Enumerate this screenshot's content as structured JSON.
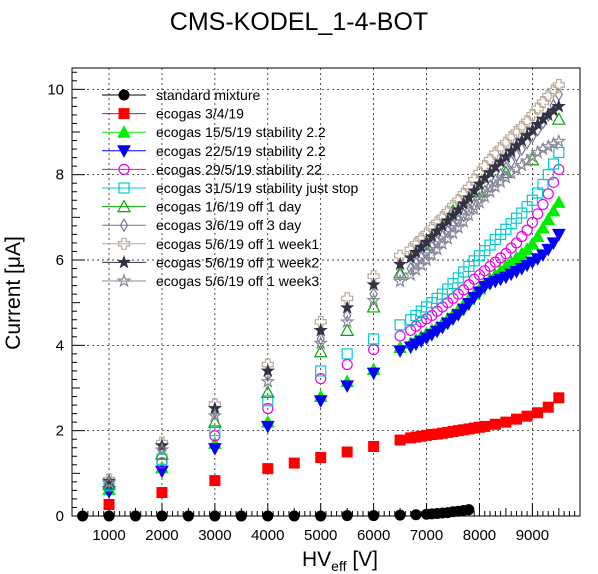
{
  "chart_data": {
    "type": "scatter",
    "title": "CMS-KODEL_1-4-BOT",
    "xlabel": {
      "main": "HV",
      "sub": "eff",
      "unit": " [V]"
    },
    "ylabel": "Current [μA]",
    "xlim": [
      300,
      9900
    ],
    "ylim": [
      0,
      10.5
    ],
    "xticks": [
      1000,
      2000,
      3000,
      4000,
      5000,
      6000,
      7000,
      8000,
      9000
    ],
    "yticks": [
      0,
      2,
      4,
      6,
      8,
      10
    ],
    "grid": true,
    "legend_position": "top-left",
    "series": [
      {
        "name": "standard mixture",
        "color": "#000000",
        "marker": "circle-filled",
        "x": [
          500,
          1000,
          1500,
          2000,
          2500,
          3000,
          3500,
          4000,
          4500,
          5000,
          5500,
          6000,
          6500,
          6800,
          7000,
          7100,
          7200,
          7300,
          7400,
          7500,
          7600,
          7700,
          7800
        ],
        "y": [
          0.0,
          0.0,
          0.0,
          0.0,
          0.0,
          0.0,
          0.0,
          0.0,
          0.0,
          0.0,
          0.01,
          0.01,
          0.02,
          0.03,
          0.04,
          0.05,
          0.06,
          0.07,
          0.08,
          0.1,
          0.11,
          0.13,
          0.15
        ]
      },
      {
        "name": "ecogas 3/4/19",
        "color": "#ff0000",
        "marker": "square-filled",
        "x": [
          1000,
          2000,
          3000,
          4000,
          4500,
          5000,
          5500,
          6000,
          6500,
          6700,
          6800,
          6900,
          7000,
          7100,
          7200,
          7300,
          7400,
          7500,
          7600,
          7700,
          7800,
          7900,
          8000,
          8100,
          8300,
          8500,
          8700,
          8900,
          9100,
          9300,
          9500
        ],
        "y": [
          0.27,
          0.55,
          0.83,
          1.11,
          1.24,
          1.37,
          1.5,
          1.63,
          1.78,
          1.83,
          1.85,
          1.87,
          1.89,
          1.91,
          1.92,
          1.94,
          1.96,
          1.98,
          2.0,
          2.02,
          2.04,
          2.06,
          2.08,
          2.1,
          2.15,
          2.2,
          2.27,
          2.34,
          2.42,
          2.55,
          2.77
        ]
      },
      {
        "name": "ecogas 15/5/19 stability 2.2",
        "color": "#00ee00",
        "marker": "triangle-up-filled",
        "x": [
          1000,
          2000,
          3000,
          4000,
          5000,
          5500,
          6000,
          6500,
          6700,
          6800,
          6900,
          7000,
          7100,
          7200,
          7300,
          7400,
          7500,
          7600,
          7700,
          7800,
          7900,
          8000,
          8100,
          8200,
          8300,
          8400,
          8500,
          8600,
          8700,
          8800,
          8900,
          9000,
          9100,
          9200,
          9300,
          9400,
          9500
        ],
        "y": [
          0.62,
          1.13,
          1.7,
          2.2,
          2.8,
          3.15,
          3.43,
          3.95,
          4.05,
          4.12,
          4.2,
          4.28,
          4.35,
          4.43,
          4.52,
          4.62,
          4.72,
          4.83,
          4.95,
          5.08,
          5.2,
          5.32,
          5.45,
          5.55,
          5.65,
          5.75,
          5.85,
          5.95,
          6.05,
          6.15,
          6.25,
          6.38,
          6.55,
          6.75,
          6.95,
          7.15,
          7.35
        ]
      },
      {
        "name": "ecogas 22/5/19 stability 2.2",
        "color": "#0000ff",
        "marker": "triangle-down-filled",
        "x": [
          1000,
          2000,
          3000,
          4000,
          5000,
          5500,
          6000,
          6500,
          6700,
          6800,
          6900,
          7000,
          7100,
          7200,
          7300,
          7400,
          7500,
          7600,
          7700,
          7800,
          7900,
          8000,
          8100,
          8200,
          8300,
          8400,
          8500,
          8600,
          8700,
          8800,
          8900,
          9000,
          9100,
          9200,
          9300,
          9400,
          9500
        ],
        "y": [
          0.57,
          1.05,
          1.58,
          2.1,
          2.7,
          3.05,
          3.35,
          3.87,
          3.96,
          4.03,
          4.1,
          4.17,
          4.25,
          4.33,
          4.42,
          4.52,
          4.62,
          4.72,
          4.85,
          4.98,
          5.12,
          5.25,
          5.38,
          5.45,
          5.5,
          5.55,
          5.6,
          5.67,
          5.73,
          5.8,
          5.88,
          5.95,
          6.03,
          6.12,
          6.25,
          6.4,
          6.6
        ]
      },
      {
        "name": "ecogas 29/5/19 stability 22",
        "color": "#ee00ee",
        "marker": "circle-open",
        "x": [
          1000,
          2000,
          3000,
          4000,
          5000,
          5500,
          6000,
          6500,
          6700,
          6800,
          6900,
          7000,
          7100,
          7200,
          7300,
          7400,
          7500,
          7600,
          7700,
          7800,
          7900,
          8000,
          8100,
          8200,
          8300,
          8400,
          8500,
          8600,
          8700,
          8800,
          8900,
          9000,
          9100,
          9200,
          9300,
          9400,
          9500
        ],
        "y": [
          0.68,
          1.25,
          1.88,
          2.52,
          3.22,
          3.55,
          3.9,
          4.22,
          4.35,
          4.45,
          4.55,
          4.62,
          4.7,
          4.8,
          4.9,
          5.0,
          5.1,
          5.2,
          5.3,
          5.42,
          5.55,
          5.65,
          5.75,
          5.85,
          5.95,
          6.05,
          6.15,
          6.28,
          6.4,
          6.55,
          6.7,
          6.88,
          7.08,
          7.3,
          7.55,
          7.82,
          8.12
        ]
      },
      {
        "name": "ecogas 31/5/19 stability just stop",
        "color": "#00cccc",
        "marker": "square-open",
        "x": [
          1000,
          2000,
          3000,
          4000,
          5000,
          5500,
          6000,
          6500,
          6700,
          6800,
          6900,
          7000,
          7100,
          7200,
          7300,
          7400,
          7500,
          7600,
          7700,
          7800,
          7900,
          8000,
          8100,
          8200,
          8300,
          8400,
          8500,
          8600,
          8700,
          8800,
          8900,
          9000,
          9100,
          9200,
          9300,
          9400,
          9500
        ],
        "y": [
          0.72,
          1.33,
          2.0,
          2.7,
          3.4,
          3.8,
          4.15,
          4.48,
          4.6,
          4.7,
          4.8,
          4.9,
          5.0,
          5.1,
          5.2,
          5.32,
          5.45,
          5.58,
          5.72,
          5.85,
          5.98,
          6.1,
          6.22,
          6.35,
          6.48,
          6.6,
          6.72,
          6.85,
          6.98,
          7.1,
          7.25,
          7.4,
          7.57,
          7.77,
          8.0,
          8.25,
          8.52
        ]
      },
      {
        "name": "ecogas 1/6/19 off 1 day",
        "color": "#00aa00",
        "marker": "triangle-up-open",
        "x": [
          1000,
          2000,
          3000,
          4000,
          5000,
          5500,
          6000,
          6500,
          7000,
          7500,
          8000,
          8500,
          9000,
          9500
        ],
        "y": [
          0.75,
          1.45,
          2.2,
          2.9,
          3.85,
          4.35,
          4.9,
          5.7,
          6.35,
          7.15,
          7.6,
          8.05,
          8.35,
          9.3
        ]
      },
      {
        "name": "ecogas 3/6/19 off 3 day",
        "color": "#777799",
        "marker": "diamond-open",
        "x": [
          1000,
          2000,
          3000,
          4000,
          5000,
          5500,
          6000,
          6500,
          6700,
          6800,
          6900,
          7000,
          7100,
          7200,
          7300,
          7400,
          7500,
          7600,
          7700,
          7800,
          7900,
          8000,
          8100,
          8200,
          8300,
          8400,
          8500,
          8600,
          8700,
          8800,
          8900,
          9000,
          9100,
          9200,
          9300,
          9400,
          9500
        ],
        "y": [
          0.8,
          1.6,
          2.45,
          3.3,
          4.15,
          4.7,
          5.2,
          5.65,
          5.8,
          5.92,
          6.05,
          6.18,
          6.3,
          6.42,
          6.55,
          6.67,
          6.8,
          6.92,
          7.05,
          7.18,
          7.3,
          7.45,
          7.6,
          7.73,
          7.86,
          8.0,
          8.15,
          8.3,
          8.45,
          8.6,
          8.75,
          8.9,
          9.05,
          9.22,
          9.4,
          9.62,
          9.88
        ]
      },
      {
        "name": "ecogas 5/6/19 off 1 week1",
        "color": "#bbaa99",
        "marker": "cross-open",
        "x": [
          1000,
          2000,
          3000,
          4000,
          5000,
          5500,
          6000,
          6500,
          6700,
          6800,
          6900,
          7000,
          7100,
          7200,
          7300,
          7400,
          7500,
          7600,
          7700,
          7800,
          7900,
          8000,
          8100,
          8200,
          8300,
          8400,
          8500,
          8600,
          8700,
          8800,
          8900,
          9000,
          9100,
          9200,
          9300,
          9400,
          9500
        ],
        "y": [
          0.85,
          1.72,
          2.62,
          3.55,
          4.55,
          5.1,
          5.62,
          6.1,
          6.25,
          6.38,
          6.5,
          6.62,
          6.75,
          6.88,
          7.0,
          7.13,
          7.27,
          7.4,
          7.55,
          7.7,
          7.88,
          8.05,
          8.2,
          8.35,
          8.5,
          8.62,
          8.75,
          8.88,
          9.0,
          9.12,
          9.25,
          9.4,
          9.55,
          9.7,
          9.85,
          9.97,
          10.1
        ]
      },
      {
        "name": "ecogas 5/6/19 off 1 week2",
        "color": "#333344",
        "marker": "star-filled",
        "x": [
          1000,
          2000,
          3000,
          4000,
          5000,
          5500,
          6000,
          6500,
          6700,
          6800,
          6900,
          7000,
          7100,
          7200,
          7300,
          7400,
          7500,
          7600,
          7700,
          7800,
          7900,
          8000,
          8100,
          8200,
          8300,
          8400,
          8500,
          8600,
          8700,
          8800,
          8900,
          9000,
          9100,
          9200,
          9300,
          9400,
          9500
        ],
        "y": [
          0.82,
          1.65,
          2.52,
          3.4,
          4.35,
          4.88,
          5.42,
          5.9,
          6.05,
          6.18,
          6.3,
          6.42,
          6.55,
          6.68,
          6.8,
          6.92,
          7.05,
          7.18,
          7.32,
          7.46,
          7.62,
          7.78,
          7.92,
          8.05,
          8.18,
          8.3,
          8.42,
          8.55,
          8.68,
          8.8,
          8.92,
          9.05,
          9.18,
          9.3,
          9.4,
          9.5,
          9.6
        ]
      },
      {
        "name": "ecogas 5/6/19 off 1 week3",
        "color": "#888899",
        "marker": "star-open",
        "x": [
          1000,
          2000,
          3000,
          4000,
          5000,
          5500,
          6000,
          6500,
          6700,
          6800,
          6900,
          7000,
          7100,
          7200,
          7300,
          7400,
          7500,
          7600,
          7700,
          7800,
          7900,
          8000,
          8100,
          8200,
          8300,
          8400,
          8500,
          8600,
          8700,
          8800,
          8900,
          9000,
          9100,
          9200,
          9300,
          9400,
          9500
        ],
        "y": [
          0.78,
          1.55,
          2.35,
          3.15,
          4.05,
          4.55,
          5.05,
          5.5,
          5.65,
          5.77,
          5.88,
          6.0,
          6.12,
          6.25,
          6.38,
          6.5,
          6.63,
          6.76,
          6.9,
          7.05,
          7.2,
          7.35,
          7.48,
          7.6,
          7.72,
          7.83,
          7.93,
          8.03,
          8.13,
          8.22,
          8.32,
          8.42,
          8.52,
          8.6,
          8.66,
          8.72,
          8.78
        ]
      }
    ]
  }
}
